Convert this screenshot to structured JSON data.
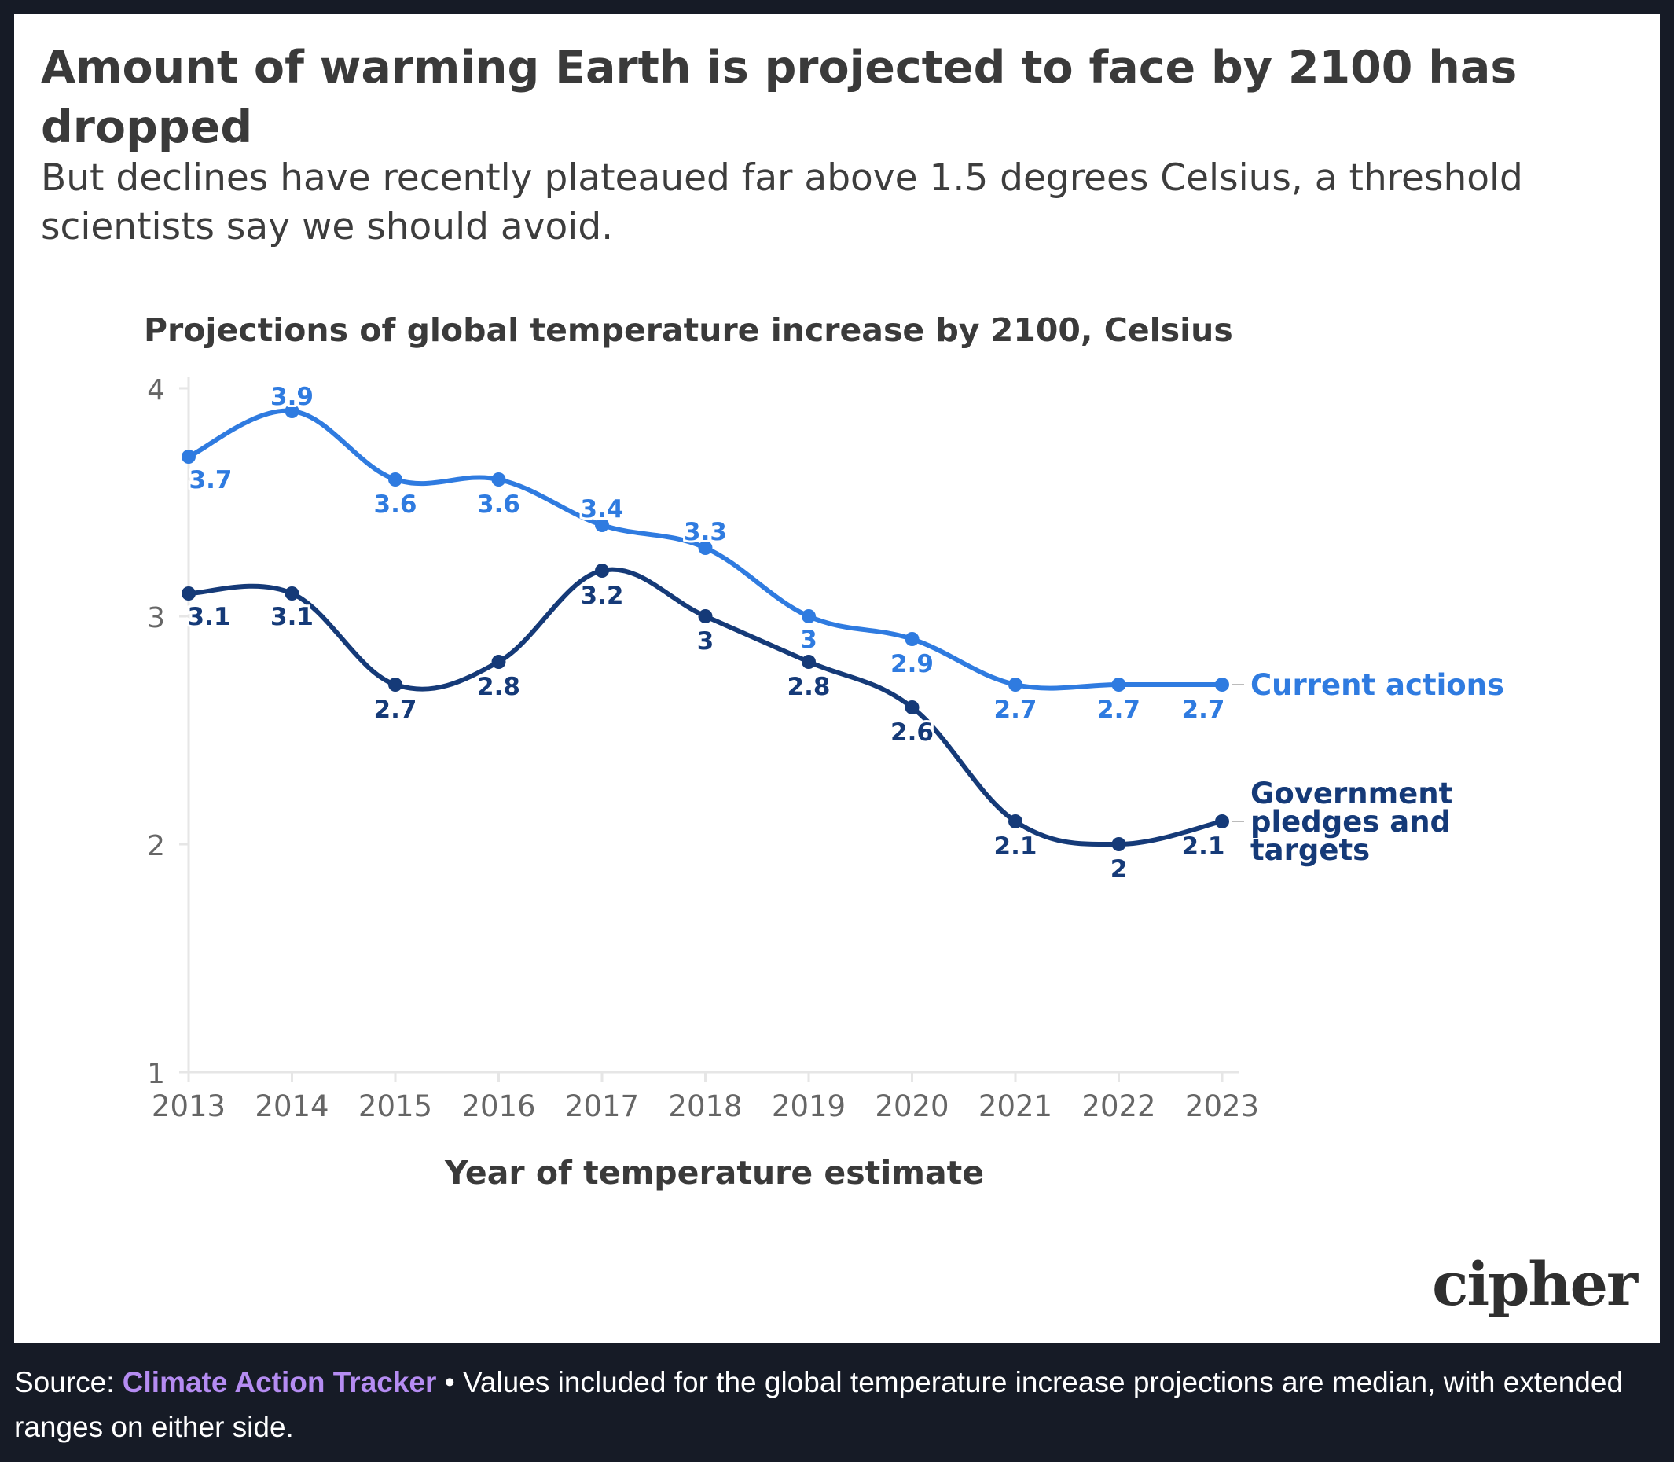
{
  "title": "Amount of warming Earth is projected to face by 2100 has dropped",
  "subtitle": "But declines have recently plateaued far above 1.5 degrees Celsius, a threshold scientists say we should avoid.",
  "logo_text": "cipher",
  "footer": {
    "source_prefix": "Source: ",
    "source_link": "Climate Action Tracker",
    "separator": " • ",
    "note": "Values included for the global temperature increase projections are median, with extended ranges on either side."
  },
  "colors": {
    "current_actions": "#2f7be0",
    "government_pledges": "#153a78",
    "axis": "#e6e6e6",
    "tick_text": "#666666"
  },
  "chart_data": {
    "type": "line",
    "title": "Projections of global temperature increase by 2100, Celsius",
    "xlabel": "Year of temperature estimate",
    "ylabel": "",
    "x": [
      "2013",
      "2014",
      "2015",
      "2016",
      "2017",
      "2018",
      "2019",
      "2020",
      "2021",
      "2022",
      "2023"
    ],
    "ylim": [
      1,
      4
    ],
    "yticks": [
      "1",
      "2",
      "3",
      "4"
    ],
    "grid": false,
    "legend": "end-of-line labels (right)",
    "series": [
      {
        "name": "Current actions",
        "values": [
          3.7,
          3.9,
          3.6,
          3.6,
          3.4,
          3.3,
          3.0,
          2.9,
          2.7,
          2.7,
          2.7
        ],
        "labels": [
          "3.7",
          "3.9",
          "3.6",
          "3.6",
          "3.4",
          "3.3",
          "3",
          "2.9",
          "2.7",
          "2.7",
          "2.7"
        ]
      },
      {
        "name": "Government pledges and targets",
        "name_lines": [
          "Government",
          "pledges and",
          "targets"
        ],
        "values": [
          3.1,
          3.1,
          2.7,
          2.8,
          3.2,
          3.0,
          2.8,
          2.6,
          2.1,
          2.0,
          2.1
        ],
        "labels": [
          "3.1",
          "3.1",
          "2.7",
          "2.8",
          "3.2",
          "3",
          "2.8",
          "2.6",
          "2.1",
          "2",
          "2.1"
        ]
      }
    ]
  }
}
